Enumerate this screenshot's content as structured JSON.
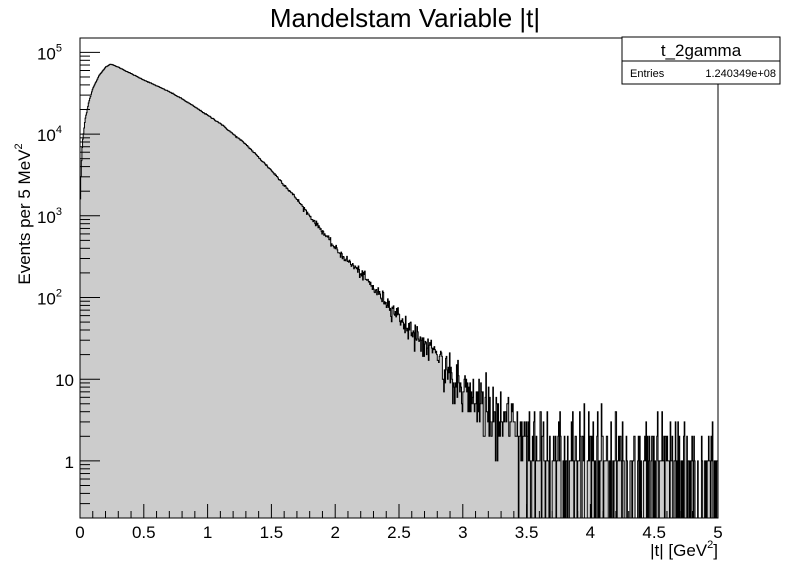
{
  "chart_data": {
    "type": "histogram",
    "title": "Mandelstam Variable |t|",
    "xlabel": "|t| [GeV",
    "xlabel_sup": "2",
    "xlabel_tail": "]",
    "ylabel": "Events per 5 MeV",
    "ylabel_sup": "2",
    "xlim": [
      0,
      5
    ],
    "ylim": [
      0.2,
      150000
    ],
    "y_scale": "log",
    "grid": false,
    "fill_color": "#cccccc",
    "line_color": "#000000",
    "x_ticks": [
      {
        "value": 0,
        "label": "0"
      },
      {
        "value": 0.5,
        "label": "0.5"
      },
      {
        "value": 1,
        "label": "1"
      },
      {
        "value": 1.5,
        "label": "1.5"
      },
      {
        "value": 2,
        "label": "2"
      },
      {
        "value": 2.5,
        "label": "2.5"
      },
      {
        "value": 3,
        "label": "3"
      },
      {
        "value": 3.5,
        "label": "3.5"
      },
      {
        "value": 4,
        "label": "4"
      },
      {
        "value": 4.5,
        "label": "4.5"
      },
      {
        "value": 5,
        "label": "5"
      }
    ],
    "y_ticks": [
      {
        "value": 1,
        "label": "1",
        "sup": ""
      },
      {
        "value": 10,
        "label": "10",
        "sup": ""
      },
      {
        "value": 100,
        "label": "10",
        "sup": "2"
      },
      {
        "value": 1000,
        "label": "10",
        "sup": "3"
      },
      {
        "value": 10000,
        "label": "10",
        "sup": "4"
      },
      {
        "value": 100000,
        "label": "10",
        "sup": "5"
      }
    ],
    "series": [
      {
        "bin_width": 0.005,
        "shape_points": [
          [
            0.0,
            1200
          ],
          [
            0.01,
            4000
          ],
          [
            0.02,
            8000
          ],
          [
            0.04,
            15000
          ],
          [
            0.07,
            25000
          ],
          [
            0.1,
            36000
          ],
          [
            0.15,
            52000
          ],
          [
            0.2,
            66000
          ],
          [
            0.24,
            72000
          ],
          [
            0.3,
            66000
          ],
          [
            0.4,
            55000
          ],
          [
            0.5,
            46000
          ],
          [
            0.6,
            39000
          ],
          [
            0.7,
            33000
          ],
          [
            0.8,
            27000
          ],
          [
            0.9,
            21500
          ],
          [
            1.0,
            17000
          ],
          [
            1.1,
            13500
          ],
          [
            1.2,
            10000
          ],
          [
            1.3,
            7500
          ],
          [
            1.4,
            5200
          ],
          [
            1.5,
            3600
          ],
          [
            1.6,
            2400
          ],
          [
            1.7,
            1600
          ],
          [
            1.8,
            1000
          ],
          [
            1.9,
            650
          ],
          [
            2.0,
            400
          ],
          [
            2.1,
            280
          ],
          [
            2.2,
            200
          ],
          [
            2.3,
            130
          ],
          [
            2.4,
            90
          ],
          [
            2.5,
            60
          ],
          [
            2.6,
            40
          ],
          [
            2.7,
            27
          ],
          [
            2.8,
            18
          ],
          [
            2.9,
            12
          ],
          [
            3.0,
            8
          ],
          [
            3.1,
            5.5
          ],
          [
            3.2,
            4
          ],
          [
            3.3,
            3
          ],
          [
            3.4,
            2.5
          ],
          [
            3.5,
            2
          ],
          [
            3.7,
            1.6
          ],
          [
            4.0,
            1.3
          ],
          [
            4.3,
            1.1
          ],
          [
            4.6,
            1.0
          ],
          [
            4.95,
            1.0
          ]
        ]
      }
    ],
    "stats_box": {
      "name": "t_2gamma",
      "entries_label": "Entries",
      "entries_value": "1.240349e+08"
    }
  }
}
